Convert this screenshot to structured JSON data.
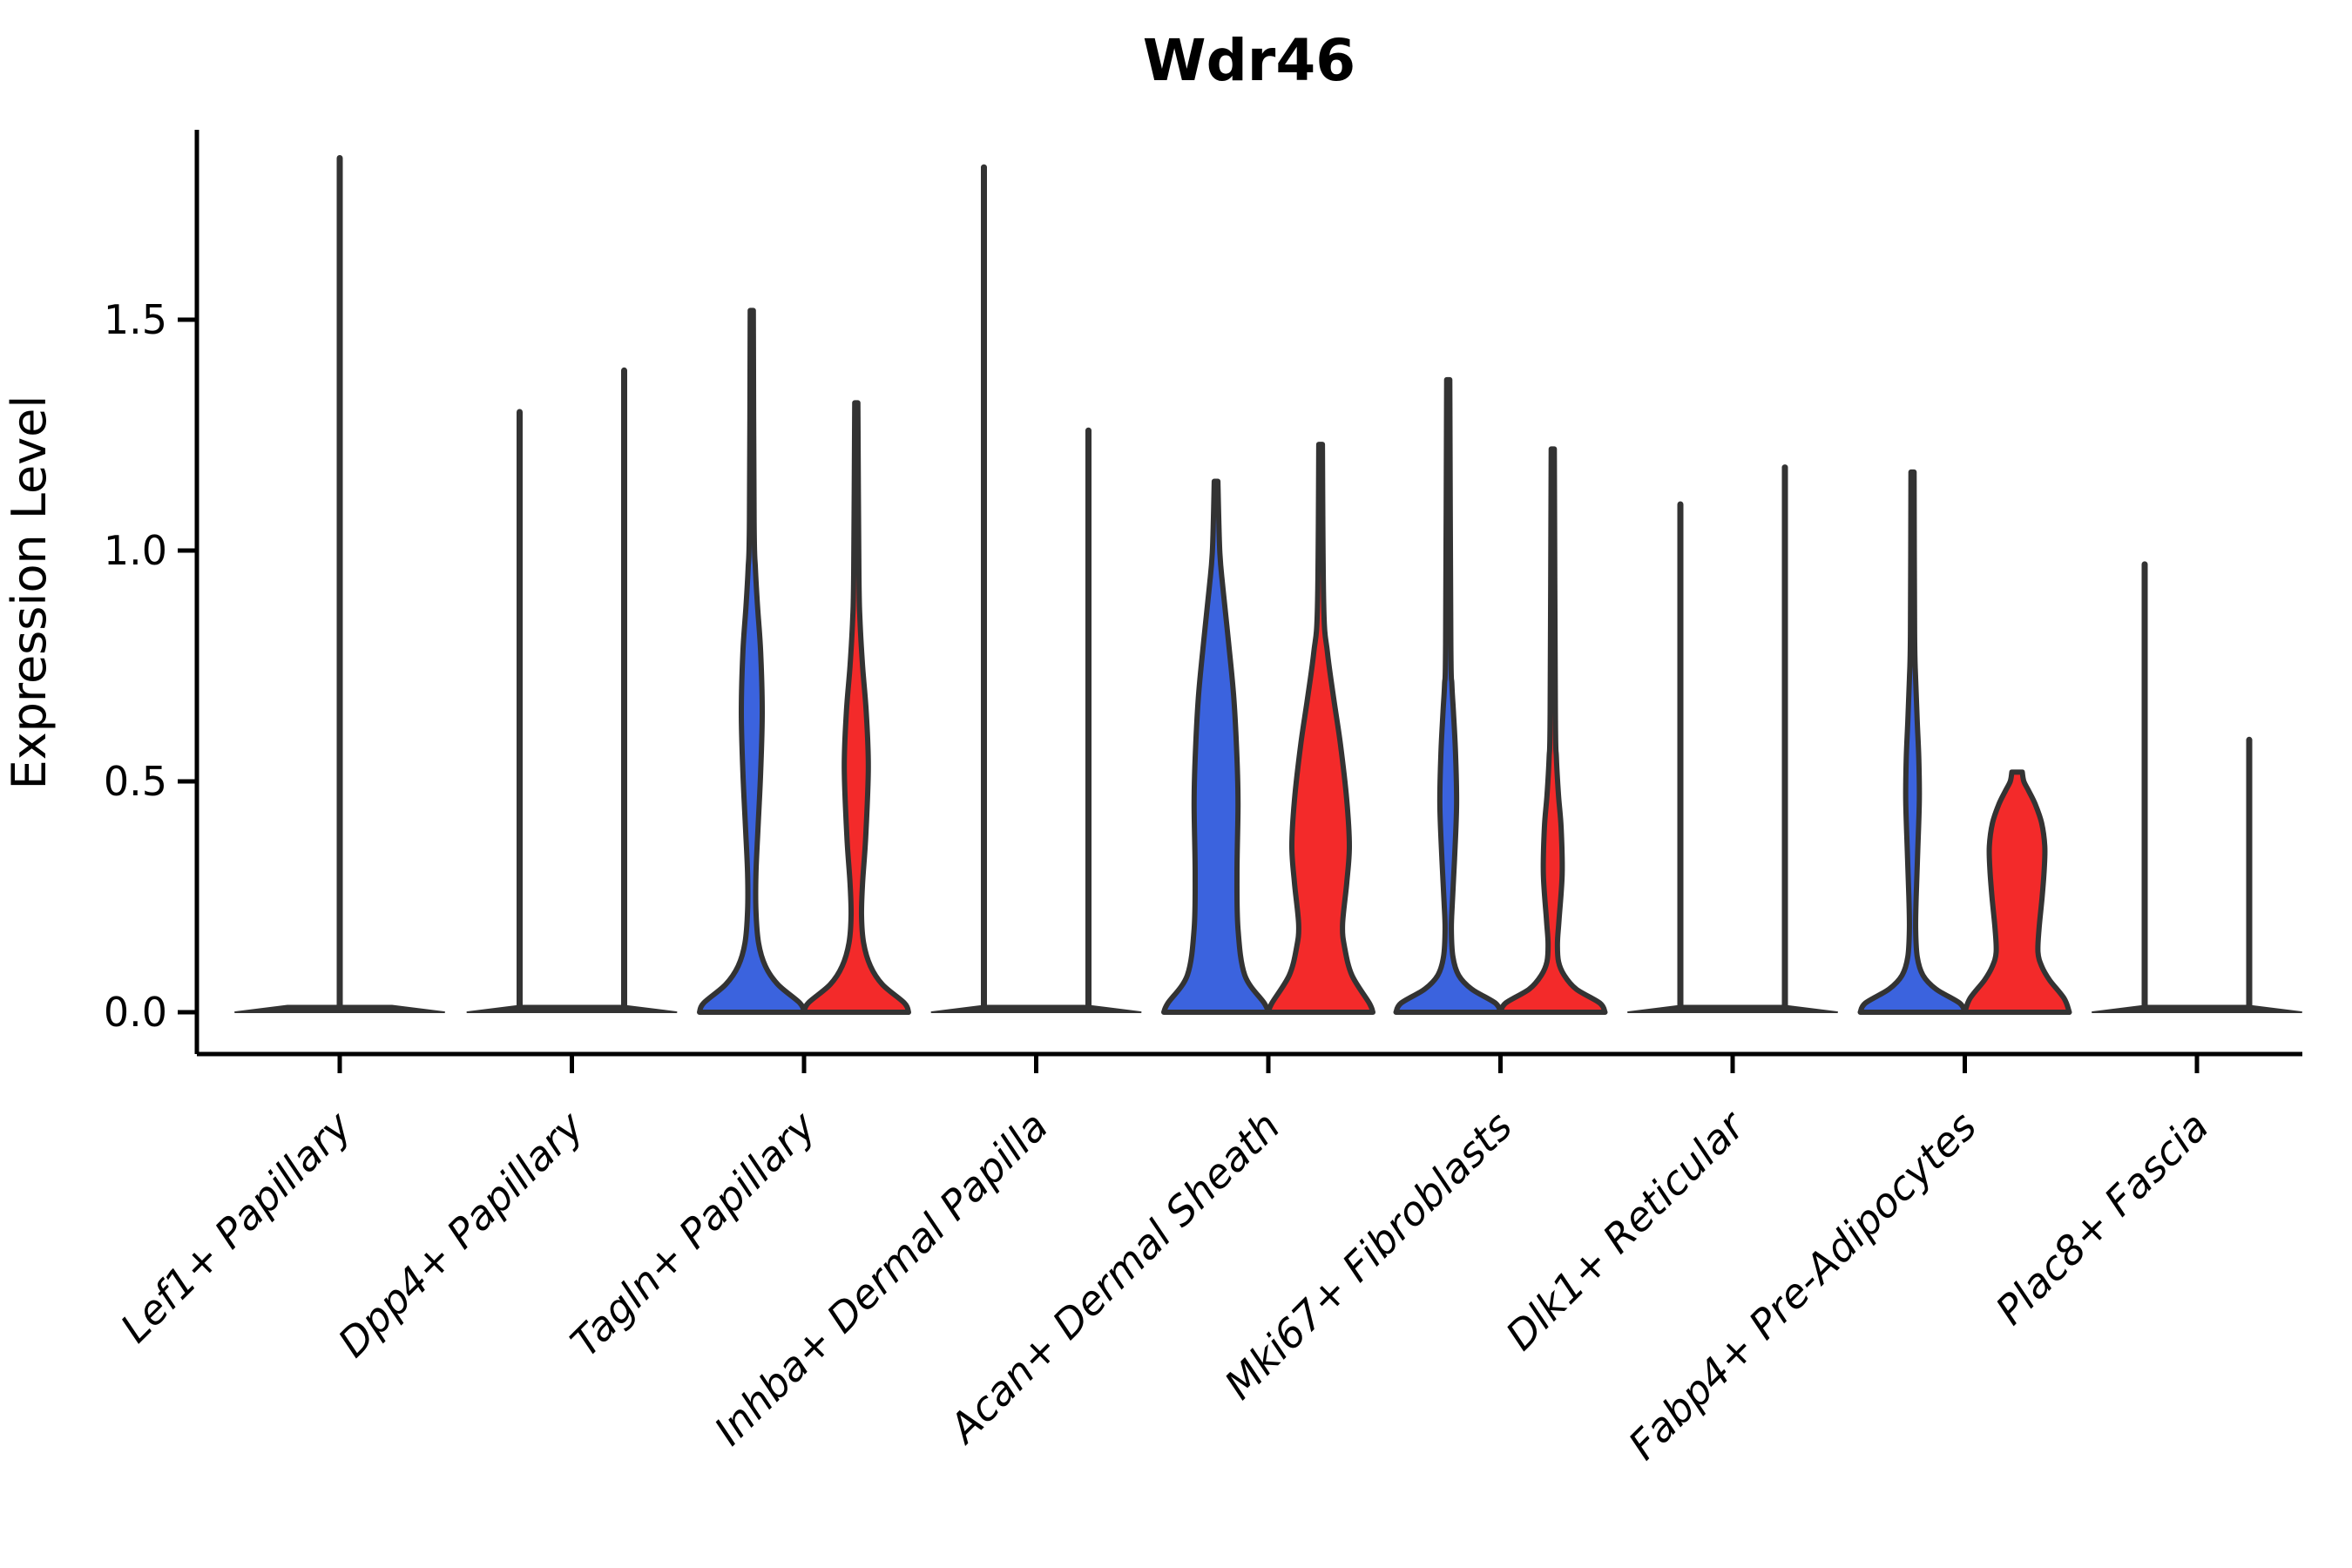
{
  "chart_data": {
    "type": "violin",
    "title": "Wdr46",
    "ylabel": "Expression Level",
    "ylim": [
      -0.09,
      1.91
    ],
    "yticks": [
      {
        "label": "0.0",
        "value": 0.0
      },
      {
        "label": "0.5",
        "value": 0.5
      },
      {
        "label": "1.0",
        "value": 1.0
      },
      {
        "label": "1.5",
        "value": 1.5
      }
    ],
    "grid": false,
    "legend": "none",
    "outline_color": "#333333",
    "series": [
      {
        "name": "blue",
        "color": "#3B63DE"
      },
      {
        "name": "red",
        "color": "#F32A2A"
      }
    ],
    "groups": [
      {
        "category": "Lef1+ Papillary",
        "violins": [
          {
            "series": 0,
            "kind": "spike",
            "span": "full",
            "max": 1.85
          }
        ]
      },
      {
        "category": "Dpp4+ Papillary",
        "violins": [
          {
            "series": 0,
            "kind": "spike",
            "max": 1.3
          },
          {
            "series": 1,
            "kind": "spike",
            "max": 1.39
          }
        ]
      },
      {
        "category": "Tagln+ Papillary",
        "violins": [
          {
            "series": 0,
            "kind": "body",
            "max": 1.52,
            "profile": [
              [
                0,
                1
              ],
              [
                0.02,
                0.92
              ],
              [
                0.06,
                0.5
              ],
              [
                0.1,
                0.26
              ],
              [
                0.15,
                0.13
              ],
              [
                0.22,
                0.08
              ],
              [
                0.3,
                0.08
              ],
              [
                0.4,
                0.12
              ],
              [
                0.52,
                0.17
              ],
              [
                0.65,
                0.2
              ],
              [
                0.78,
                0.17
              ],
              [
                0.88,
                0.11
              ],
              [
                0.96,
                0.07
              ],
              [
                1.06,
                0.045
              ],
              [
                1.52,
                0.03
              ]
            ]
          },
          {
            "series": 1,
            "kind": "body",
            "max": 1.32,
            "profile": [
              [
                0,
                1
              ],
              [
                0.02,
                0.92
              ],
              [
                0.06,
                0.5
              ],
              [
                0.1,
                0.27
              ],
              [
                0.15,
                0.14
              ],
              [
                0.21,
                0.1
              ],
              [
                0.28,
                0.12
              ],
              [
                0.38,
                0.18
              ],
              [
                0.53,
                0.23
              ],
              [
                0.65,
                0.19
              ],
              [
                0.75,
                0.12
              ],
              [
                0.85,
                0.07
              ],
              [
                0.95,
                0.05
              ],
              [
                1.32,
                0.03
              ]
            ]
          }
        ]
      },
      {
        "category": "Inhba+ Dermal Papilla",
        "violins": [
          {
            "series": 0,
            "kind": "spike",
            "max": 1.83
          },
          {
            "series": 1,
            "kind": "spike",
            "max": 1.26
          }
        ]
      },
      {
        "category": "Acan+ Dermal Sheath",
        "violins": [
          {
            "series": 0,
            "kind": "body",
            "max": 1.15,
            "profile": [
              [
                0,
                1
              ],
              [
                0.02,
                0.92
              ],
              [
                0.08,
                0.55
              ],
              [
                0.18,
                0.42
              ],
              [
                0.3,
                0.4
              ],
              [
                0.45,
                0.42
              ],
              [
                0.55,
                0.4
              ],
              [
                0.68,
                0.34
              ],
              [
                0.8,
                0.24
              ],
              [
                0.92,
                0.13
              ],
              [
                1.0,
                0.07
              ],
              [
                1.15,
                0.035
              ]
            ]
          },
          {
            "series": 1,
            "kind": "body",
            "max": 1.23,
            "profile": [
              [
                0,
                1
              ],
              [
                0.02,
                0.93
              ],
              [
                0.08,
                0.6
              ],
              [
                0.14,
                0.46
              ],
              [
                0.19,
                0.42
              ],
              [
                0.28,
                0.5
              ],
              [
                0.36,
                0.55
              ],
              [
                0.46,
                0.5
              ],
              [
                0.58,
                0.38
              ],
              [
                0.68,
                0.25
              ],
              [
                0.78,
                0.13
              ],
              [
                0.88,
                0.06
              ],
              [
                1.23,
                0.035
              ]
            ]
          }
        ]
      },
      {
        "category": "Mki67+ Fibroblasts",
        "violins": [
          {
            "series": 0,
            "kind": "body",
            "max": 1.37,
            "profile": [
              [
                0,
                1
              ],
              [
                0.02,
                0.9
              ],
              [
                0.05,
                0.45
              ],
              [
                0.08,
                0.2
              ],
              [
                0.12,
                0.09
              ],
              [
                0.18,
                0.06
              ],
              [
                0.24,
                0.08
              ],
              [
                0.33,
                0.12
              ],
              [
                0.45,
                0.16
              ],
              [
                0.56,
                0.14
              ],
              [
                0.65,
                0.1
              ],
              [
                0.71,
                0.07
              ],
              [
                0.8,
                0.05
              ],
              [
                1.37,
                0.03
              ]
            ]
          },
          {
            "series": 1,
            "kind": "body",
            "max": 1.22,
            "profile": [
              [
                0,
                1
              ],
              [
                0.02,
                0.9
              ],
              [
                0.05,
                0.45
              ],
              [
                0.08,
                0.22
              ],
              [
                0.11,
                0.11
              ],
              [
                0.15,
                0.09
              ],
              [
                0.2,
                0.12
              ],
              [
                0.3,
                0.18
              ],
              [
                0.4,
                0.16
              ],
              [
                0.47,
                0.11
              ],
              [
                0.55,
                0.07
              ],
              [
                0.65,
                0.05
              ],
              [
                1.22,
                0.03
              ]
            ]
          }
        ]
      },
      {
        "category": "Dlk1+ Reticular",
        "violins": [
          {
            "series": 0,
            "kind": "spike",
            "max": 1.1
          },
          {
            "series": 1,
            "kind": "spike",
            "max": 1.18
          }
        ]
      },
      {
        "category": "Fabp4+ Pre-Adipocytes",
        "violins": [
          {
            "series": 0,
            "kind": "body",
            "max": 1.17,
            "profile": [
              [
                0,
                1
              ],
              [
                0.02,
                0.9
              ],
              [
                0.05,
                0.45
              ],
              [
                0.08,
                0.2
              ],
              [
                0.12,
                0.09
              ],
              [
                0.18,
                0.06
              ],
              [
                0.25,
                0.07
              ],
              [
                0.35,
                0.1
              ],
              [
                0.46,
                0.13
              ],
              [
                0.55,
                0.12
              ],
              [
                0.63,
                0.09
              ],
              [
                0.72,
                0.06
              ],
              [
                0.82,
                0.04
              ],
              [
                1.17,
                0.03
              ]
            ]
          },
          {
            "series": 1,
            "kind": "body",
            "max": 0.52,
            "profile": [
              [
                0,
                1
              ],
              [
                0.03,
                0.9
              ],
              [
                0.07,
                0.62
              ],
              [
                0.1,
                0.47
              ],
              [
                0.13,
                0.4
              ],
              [
                0.18,
                0.42
              ],
              [
                0.25,
                0.48
              ],
              [
                0.31,
                0.52
              ],
              [
                0.36,
                0.53
              ],
              [
                0.41,
                0.47
              ],
              [
                0.45,
                0.35
              ],
              [
                0.48,
                0.22
              ],
              [
                0.5,
                0.13
              ],
              [
                0.52,
                0.1
              ]
            ]
          }
        ]
      },
      {
        "category": "Plac8+ Fascia",
        "violins": [
          {
            "series": 0,
            "kind": "spike",
            "max": 0.97
          },
          {
            "series": 1,
            "kind": "spike",
            "max": 0.59
          }
        ]
      }
    ]
  }
}
